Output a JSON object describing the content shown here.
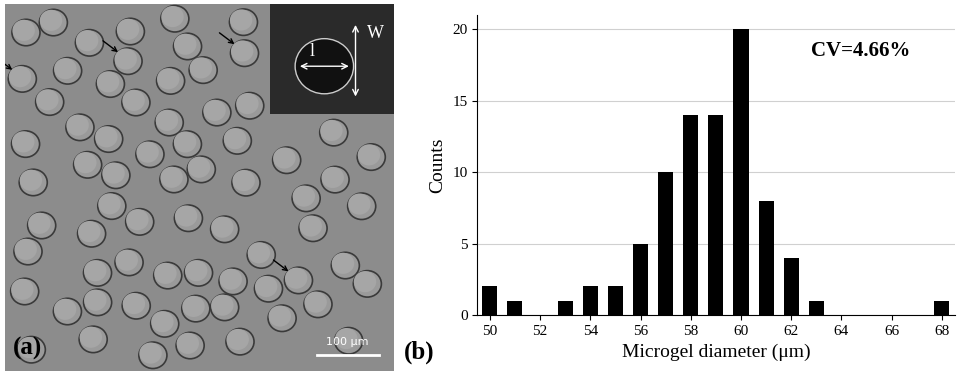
{
  "image_panel": {
    "label": "(a)",
    "scale_bar": "100 μm",
    "inset_labels": [
      "l",
      "W"
    ]
  },
  "chart_data": {
    "type": "histogram",
    "panel_label": "(b)",
    "x_label": "Microgel diameter (μm)",
    "y_label": "Counts",
    "annotation": "CV=4.66%",
    "bins": [
      49.5,
      50.5,
      51.5,
      52.5,
      53.5,
      54.5,
      55.5,
      56.5,
      57.5,
      58.5,
      59.5,
      60.5,
      61.5,
      62.5,
      63.5,
      64.5,
      65.5,
      66.5,
      67.5,
      68.5
    ],
    "counts": [
      2,
      1,
      0,
      1,
      2,
      2,
      5,
      10,
      14,
      14,
      20,
      8,
      4,
      1,
      0,
      0,
      0,
      0,
      1
    ],
    "color": "#000000",
    "xlim": [
      49.5,
      68.5
    ],
    "xticks": [
      50,
      52,
      54,
      56,
      58,
      60,
      62,
      64,
      66,
      68
    ],
    "ylim": [
      0,
      21
    ],
    "yticks": [
      0,
      5,
      10,
      15,
      20
    ],
    "grid": true
  }
}
